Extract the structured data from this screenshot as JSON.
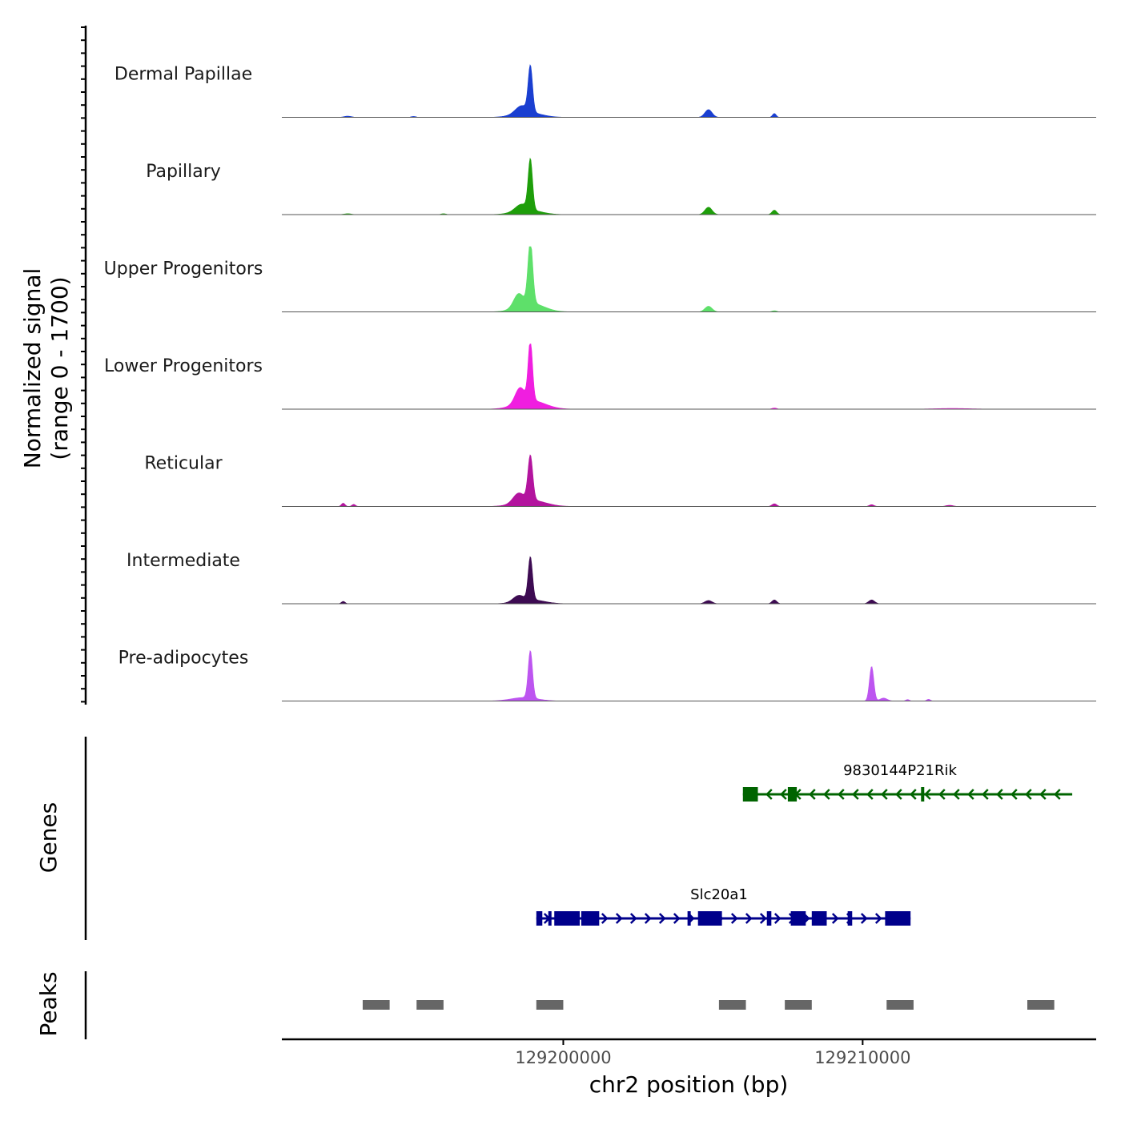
{
  "chart_data": {
    "type": "area",
    "region": {
      "chromosome": "chr2",
      "start": 129190600,
      "end": 129217800
    },
    "ylabel_line1": "Normalized signal",
    "ylabel_line2": "(range 0 - 1700)",
    "y_range": [
      0,
      1700
    ],
    "xlabel": "chr2 position (bp)",
    "x_ticks": [
      {
        "value": 129200000,
        "label": "129200000"
      },
      {
        "value": 129210000,
        "label": "129210000"
      }
    ],
    "genes_label": "Genes",
    "peaks_label": "Peaks",
    "tracks": [
      {
        "name": "Dermal Papillae",
        "color": "#1a3fd1",
        "peaks": [
          {
            "pos": 129198900,
            "height": 1530,
            "width": 180
          },
          {
            "pos": 129198600,
            "height": 240,
            "width": 500
          },
          {
            "pos": 129198800,
            "height": 170,
            "width": 1100
          },
          {
            "pos": 129204850,
            "height": 260,
            "width": 300
          },
          {
            "pos": 129207050,
            "height": 130,
            "width": 150
          },
          {
            "pos": 129192800,
            "height": 40,
            "width": 300
          },
          {
            "pos": 129195000,
            "height": 30,
            "width": 200
          }
        ]
      },
      {
        "name": "Papillary",
        "color": "#1e9e0a",
        "peaks": [
          {
            "pos": 129198900,
            "height": 1680,
            "width": 180
          },
          {
            "pos": 129198600,
            "height": 210,
            "width": 500
          },
          {
            "pos": 129198800,
            "height": 160,
            "width": 1100
          },
          {
            "pos": 129204850,
            "height": 250,
            "width": 300
          },
          {
            "pos": 129207050,
            "height": 150,
            "width": 200
          },
          {
            "pos": 129192800,
            "height": 30,
            "width": 300
          },
          {
            "pos": 129196000,
            "height": 30,
            "width": 200
          }
        ]
      },
      {
        "name": "Upper Progenitors",
        "color": "#5ee06a",
        "peaks": [
          {
            "pos": 129198900,
            "height": 2100,
            "width": 200
          },
          {
            "pos": 129198500,
            "height": 420,
            "width": 400
          },
          {
            "pos": 129198900,
            "height": 300,
            "width": 1100
          },
          {
            "pos": 129204850,
            "height": 190,
            "width": 300
          },
          {
            "pos": 129207050,
            "height": 40,
            "width": 200
          }
        ]
      },
      {
        "name": "Lower Progenitors",
        "color": "#f01ee0",
        "peaks": [
          {
            "pos": 129198900,
            "height": 2000,
            "width": 180
          },
          {
            "pos": 129198550,
            "height": 500,
            "width": 400
          },
          {
            "pos": 129198900,
            "height": 300,
            "width": 1200
          },
          {
            "pos": 129207050,
            "height": 40,
            "width": 200
          },
          {
            "pos": 129213000,
            "height": 25,
            "width": 1500
          }
        ]
      },
      {
        "name": "Reticular",
        "color": "#b3149e",
        "peaks": [
          {
            "pos": 129198900,
            "height": 1500,
            "width": 200
          },
          {
            "pos": 129198500,
            "height": 300,
            "width": 450
          },
          {
            "pos": 129198900,
            "height": 220,
            "width": 1200
          },
          {
            "pos": 129192650,
            "height": 110,
            "width": 150
          },
          {
            "pos": 129193000,
            "height": 70,
            "width": 150
          },
          {
            "pos": 129207050,
            "height": 90,
            "width": 200
          },
          {
            "pos": 129210300,
            "height": 60,
            "width": 200
          },
          {
            "pos": 129212900,
            "height": 40,
            "width": 300
          }
        ]
      },
      {
        "name": "Intermediate",
        "color": "#3d0b52",
        "peaks": [
          {
            "pos": 129198900,
            "height": 1440,
            "width": 180
          },
          {
            "pos": 129198500,
            "height": 190,
            "width": 450
          },
          {
            "pos": 129198900,
            "height": 140,
            "width": 1100
          },
          {
            "pos": 129192650,
            "height": 80,
            "width": 150
          },
          {
            "pos": 129204850,
            "height": 110,
            "width": 300
          },
          {
            "pos": 129207050,
            "height": 130,
            "width": 200
          },
          {
            "pos": 129210300,
            "height": 130,
            "width": 250
          }
        ]
      },
      {
        "name": "Pre-adipocytes",
        "color": "#bd55f0",
        "peaks": [
          {
            "pos": 129198900,
            "height": 1600,
            "width": 180
          },
          {
            "pos": 129198700,
            "height": 120,
            "width": 1100
          },
          {
            "pos": 129210300,
            "height": 1170,
            "width": 180
          },
          {
            "pos": 129210700,
            "height": 100,
            "width": 300
          },
          {
            "pos": 129211500,
            "height": 50,
            "width": 150
          },
          {
            "pos": 129212200,
            "height": 60,
            "width": 150
          }
        ]
      }
    ],
    "genes": [
      {
        "name": "9830144P21Rik",
        "strand": "-",
        "color": "#006400",
        "start": 129206000,
        "end": 129217000,
        "exons": [
          [
            129206000,
            129206500
          ],
          [
            129207500,
            129207800
          ],
          [
            129211950,
            129212050
          ]
        ]
      },
      {
        "name": "Slc20a1",
        "strand": "+",
        "color": "#00008b",
        "start": 129199100,
        "end": 129211600,
        "exons": [
          [
            129199100,
            129199300
          ],
          [
            129199500,
            129199550
          ],
          [
            129199700,
            129200550
          ],
          [
            129200600,
            129201200
          ],
          [
            129204150,
            129204200
          ],
          [
            129204500,
            129205300
          ],
          [
            129206800,
            129206950
          ],
          [
            129207600,
            129208100
          ],
          [
            129208300,
            129208800
          ],
          [
            129209500,
            129209650
          ],
          [
            129210750,
            129211600
          ]
        ]
      }
    ],
    "peak_regions": [
      [
        129193300,
        129194200
      ],
      [
        129195100,
        129196000
      ],
      [
        129199100,
        129200000
      ],
      [
        129205200,
        129206100
      ],
      [
        129207400,
        129208300
      ],
      [
        129210800,
        129211700
      ],
      [
        129215500,
        129216400
      ]
    ]
  }
}
